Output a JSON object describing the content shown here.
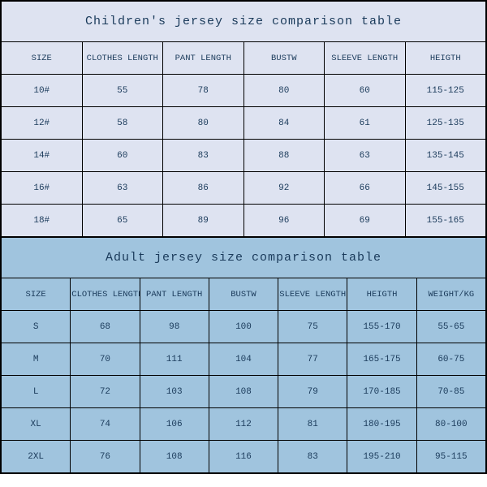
{
  "children": {
    "type": "table",
    "title": "Children's jersey size comparison table",
    "title_color": "#1a3a5a",
    "title_fontsize": 15,
    "header_fontsize": 10.5,
    "cell_fontsize": 11,
    "background_color": "#dee3f1",
    "border_color": "#000000",
    "columns": [
      "SIZE",
      "CLOTHES LENGTH",
      "PANT LENGTH",
      "BUSTW",
      "SLEEVE LENGTH",
      "HEIGTH"
    ],
    "col_widths_pct": [
      10,
      17,
      15,
      13,
      17,
      28
    ],
    "rows": [
      [
        "10#",
        "55",
        "78",
        "80",
        "60",
        "115-125"
      ],
      [
        "12#",
        "58",
        "80",
        "84",
        "61",
        "125-135"
      ],
      [
        "14#",
        "60",
        "83",
        "88",
        "63",
        "135-145"
      ],
      [
        "16#",
        "63",
        "86",
        "92",
        "66",
        "145-155"
      ],
      [
        "18#",
        "65",
        "89",
        "96",
        "69",
        "155-165"
      ]
    ]
  },
  "adult": {
    "type": "table",
    "title": "Adult jersey size comparison table",
    "title_color": "#1a3a5a",
    "title_fontsize": 15,
    "header_fontsize": 10.5,
    "cell_fontsize": 11,
    "background_color": "#a0c4de",
    "border_color": "#000000",
    "columns": [
      "SIZE",
      "CLOTHES LENGTH",
      "PANT LENGTH",
      "BUSTW",
      "SLEEVE LENGTH",
      "HEIGTH",
      "WEIGHT/KG"
    ],
    "col_widths_pct": [
      10,
      17,
      15,
      13,
      17,
      14,
      14
    ],
    "rows": [
      [
        "S",
        "68",
        "98",
        "100",
        "75",
        "155-170",
        "55-65"
      ],
      [
        "M",
        "70",
        "111",
        "104",
        "77",
        "165-175",
        "60-75"
      ],
      [
        "L",
        "72",
        "103",
        "108",
        "79",
        "170-185",
        "70-85"
      ],
      [
        "XL",
        "74",
        "106",
        "112",
        "81",
        "180-195",
        "80-100"
      ],
      [
        "2XL",
        "76",
        "108",
        "116",
        "83",
        "195-210",
        "95-115"
      ]
    ]
  }
}
